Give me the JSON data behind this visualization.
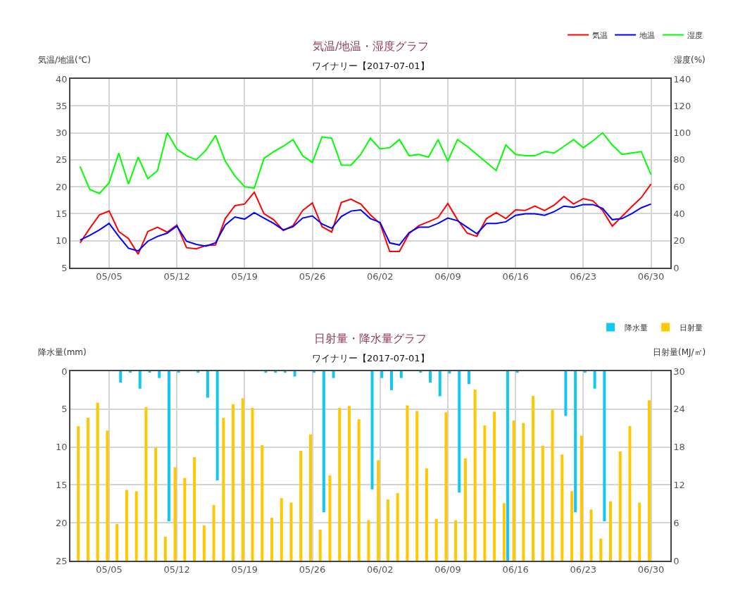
{
  "chart_data": [
    {
      "type": "line",
      "title": "気温/地温・湿度グラフ",
      "subtitle": "ワイナリー【2017-07-01】",
      "ylabel": "気温/地温(℃)",
      "y2label": "湿度(%)",
      "x": [
        "2017-05-02",
        "2017-05-03",
        "2017-05-04",
        "2017-05-05",
        "2017-05-06",
        "2017-05-07",
        "2017-05-08",
        "2017-05-09",
        "2017-05-10",
        "2017-05-11",
        "2017-05-12",
        "2017-05-13",
        "2017-05-14",
        "2017-05-15",
        "2017-05-16",
        "2017-05-17",
        "2017-05-18",
        "2017-05-19",
        "2017-05-20",
        "2017-05-21",
        "2017-05-22",
        "2017-05-23",
        "2017-05-24",
        "2017-05-25",
        "2017-05-26",
        "2017-05-27",
        "2017-05-28",
        "2017-05-29",
        "2017-05-30",
        "2017-05-31",
        "2017-06-01",
        "2017-06-02",
        "2017-06-03",
        "2017-06-04",
        "2017-06-05",
        "2017-06-06",
        "2017-06-07",
        "2017-06-08",
        "2017-06-09",
        "2017-06-10",
        "2017-06-11",
        "2017-06-12",
        "2017-06-13",
        "2017-06-14",
        "2017-06-15",
        "2017-06-16",
        "2017-06-17",
        "2017-06-18",
        "2017-06-19",
        "2017-06-20",
        "2017-06-21",
        "2017-06-22",
        "2017-06-23",
        "2017-06-24",
        "2017-06-25",
        "2017-06-26",
        "2017-06-27",
        "2017-06-28",
        "2017-06-29",
        "2017-06-30"
      ],
      "series": [
        {
          "name": "気温",
          "color": "#ff0000",
          "values": [
            9.6,
            12.3,
            14.8,
            15.5,
            11.7,
            10.4,
            7.5,
            11.7,
            12.5,
            11.6,
            12.9,
            8.7,
            8.5,
            9.1,
            9.2,
            14.1,
            16.5,
            16.8,
            19.0,
            15.0,
            13.9,
            11.9,
            12.8,
            15.6,
            17.0,
            12.6,
            11.6,
            17.1,
            17.7,
            16.8,
            14.8,
            13.2,
            8.0,
            8.0,
            11.3,
            12.8,
            13.5,
            14.3,
            16.9,
            13.9,
            11.4,
            10.8,
            14.1,
            15.2,
            14.1,
            15.7,
            15.6,
            16.4,
            15.6,
            16.6,
            18.2,
            16.8,
            17.8,
            17.4,
            15.6,
            12.7,
            14.5,
            16.3,
            18.0,
            20.5
          ]
        },
        {
          "name": "地温",
          "color": "#0000ff",
          "values": [
            10.1,
            11.0,
            12.0,
            13.2,
            10.8,
            8.6,
            8.1,
            9.9,
            10.8,
            11.4,
            12.7,
            9.9,
            9.3,
            9.0,
            9.6,
            12.9,
            14.4,
            14.0,
            15.2,
            14.2,
            13.2,
            12.0,
            12.6,
            14.2,
            14.6,
            13.1,
            12.3,
            14.5,
            15.5,
            15.7,
            14.1,
            13.4,
            9.6,
            9.2,
            11.5,
            12.5,
            12.5,
            13.2,
            14.2,
            13.7,
            12.5,
            11.3,
            13.2,
            13.2,
            13.5,
            14.7,
            15.0,
            15.0,
            14.7,
            15.4,
            16.4,
            16.2,
            16.7,
            16.7,
            16.0,
            13.9,
            14.1,
            15.0,
            16.1,
            16.8
          ]
        },
        {
          "name": "湿度",
          "color": "#00ff00",
          "axis": "y2",
          "values": [
            75,
            58,
            55,
            63,
            85,
            62,
            82,
            66,
            72,
            100,
            88,
            83,
            80,
            87,
            98,
            79,
            68,
            60,
            59,
            81,
            86,
            90,
            95,
            83,
            78,
            97,
            96,
            76,
            76,
            84,
            96,
            88,
            89,
            95,
            83,
            84,
            82,
            95,
            79,
            95,
            90,
            84,
            78,
            72,
            91,
            84,
            83,
            83,
            86,
            85,
            90,
            95,
            89,
            94,
            100,
            91,
            84,
            85,
            86,
            69
          ]
        }
      ],
      "xlim": [
        "2017-05-01",
        "2017-07-02"
      ],
      "xticks": [
        {
          "value": "2017-05-05",
          "label": "05/05"
        },
        {
          "value": "2017-05-12",
          "label": "05/12"
        },
        {
          "value": "2017-05-19",
          "label": "05/19"
        },
        {
          "value": "2017-05-26",
          "label": "05/26"
        },
        {
          "value": "2017-06-02",
          "label": "06/02"
        },
        {
          "value": "2017-06-09",
          "label": "06/09"
        },
        {
          "value": "2017-06-16",
          "label": "06/16"
        },
        {
          "value": "2017-06-23",
          "label": "06/23"
        },
        {
          "value": "2017-06-30",
          "label": "06/30"
        }
      ],
      "ylim": [
        5,
        40
      ],
      "yticks": [
        5,
        10,
        15,
        20,
        25,
        30,
        35,
        40
      ],
      "y2lim": [
        0,
        140
      ],
      "y2ticks": [
        0,
        20,
        40,
        60,
        80,
        100,
        120,
        140
      ],
      "grid": true,
      "legend": "top right",
      "marker": "none",
      "line_style": "solid"
    },
    {
      "type": "bar",
      "title": "日射量・降水量グラフ",
      "subtitle": "ワイナリー【2017-07-01】",
      "ylabel": "降水量(mm)",
      "y2label": "日射量(MJ/㎡)",
      "x": [
        "2017-05-02",
        "2017-05-03",
        "2017-05-04",
        "2017-05-05",
        "2017-05-06",
        "2017-05-07",
        "2017-05-08",
        "2017-05-09",
        "2017-05-10",
        "2017-05-11",
        "2017-05-12",
        "2017-05-13",
        "2017-05-14",
        "2017-05-15",
        "2017-05-16",
        "2017-05-17",
        "2017-05-18",
        "2017-05-19",
        "2017-05-20",
        "2017-05-21",
        "2017-05-22",
        "2017-05-23",
        "2017-05-24",
        "2017-05-25",
        "2017-05-26",
        "2017-05-27",
        "2017-05-28",
        "2017-05-29",
        "2017-05-30",
        "2017-05-31",
        "2017-06-01",
        "2017-06-02",
        "2017-06-03",
        "2017-06-04",
        "2017-06-05",
        "2017-06-06",
        "2017-06-07",
        "2017-06-08",
        "2017-06-09",
        "2017-06-10",
        "2017-06-11",
        "2017-06-12",
        "2017-06-13",
        "2017-06-14",
        "2017-06-15",
        "2017-06-16",
        "2017-06-17",
        "2017-06-18",
        "2017-06-19",
        "2017-06-20",
        "2017-06-21",
        "2017-06-22",
        "2017-06-23",
        "2017-06-24",
        "2017-06-25",
        "2017-06-26",
        "2017-06-27",
        "2017-06-28",
        "2017-06-29",
        "2017-06-30"
      ],
      "series": [
        {
          "name": "降水量",
          "color": "#11c8f2",
          "axis": "y",
          "values": [
            0,
            0,
            0,
            0,
            1.5,
            0.2,
            2.3,
            0.2,
            0.9,
            19.8,
            0.2,
            0,
            0.2,
            3.5,
            14.4,
            0,
            0,
            0,
            0,
            0.2,
            0.2,
            0.2,
            0.7,
            0,
            0.2,
            18.6,
            0.9,
            0,
            0,
            0,
            15.6,
            0.9,
            2.5,
            0.9,
            0,
            0.2,
            1.5,
            3.3,
            0.3,
            16.0,
            1.7,
            0,
            0,
            0,
            25.0,
            0.2,
            0,
            0,
            0,
            0,
            5.9,
            18.6,
            0.2,
            2.3,
            19.8,
            0,
            0,
            0,
            0,
            0
          ]
        },
        {
          "name": "日射量",
          "color": "#ffc800",
          "axis": "y2",
          "values": [
            21.3,
            22.6,
            25.0,
            20.6,
            5.8,
            11.2,
            11.0,
            24.3,
            17.9,
            3.8,
            14.8,
            13.1,
            16.4,
            5.6,
            8.8,
            22.6,
            24.8,
            25.7,
            24.2,
            18.3,
            6.8,
            9.9,
            9.2,
            17.4,
            20.0,
            4.9,
            13.5,
            24.2,
            24.5,
            22.4,
            6.4,
            15.9,
            9.7,
            10.7,
            24.6,
            23.7,
            14.6,
            6.6,
            23.5,
            6.4,
            16.2,
            27.1,
            21.4,
            23.6,
            9.1,
            22.2,
            21.8,
            26.1,
            18.2,
            23.9,
            16.8,
            11.0,
            19.8,
            8.1,
            3.5,
            9.4,
            17.3,
            21.3,
            9.2,
            25.4
          ]
        }
      ],
      "xlim": [
        "2017-05-01",
        "2017-07-02"
      ],
      "xticks": [
        {
          "value": "2017-05-05",
          "label": "05/05"
        },
        {
          "value": "2017-05-12",
          "label": "05/12"
        },
        {
          "value": "2017-05-19",
          "label": "05/19"
        },
        {
          "value": "2017-05-26",
          "label": "05/26"
        },
        {
          "value": "2017-06-02",
          "label": "06/02"
        },
        {
          "value": "2017-06-09",
          "label": "06/09"
        },
        {
          "value": "2017-06-16",
          "label": "06/16"
        },
        {
          "value": "2017-06-23",
          "label": "06/23"
        },
        {
          "value": "2017-06-30",
          "label": "06/30"
        }
      ],
      "ylim": [
        25,
        0
      ],
      "yticks": [
        0,
        5,
        10,
        15,
        20,
        25
      ],
      "y2lim": [
        0,
        30
      ],
      "y2ticks": [
        0,
        6,
        12,
        18,
        24,
        30
      ],
      "grid": true,
      "legend": "top right"
    }
  ]
}
